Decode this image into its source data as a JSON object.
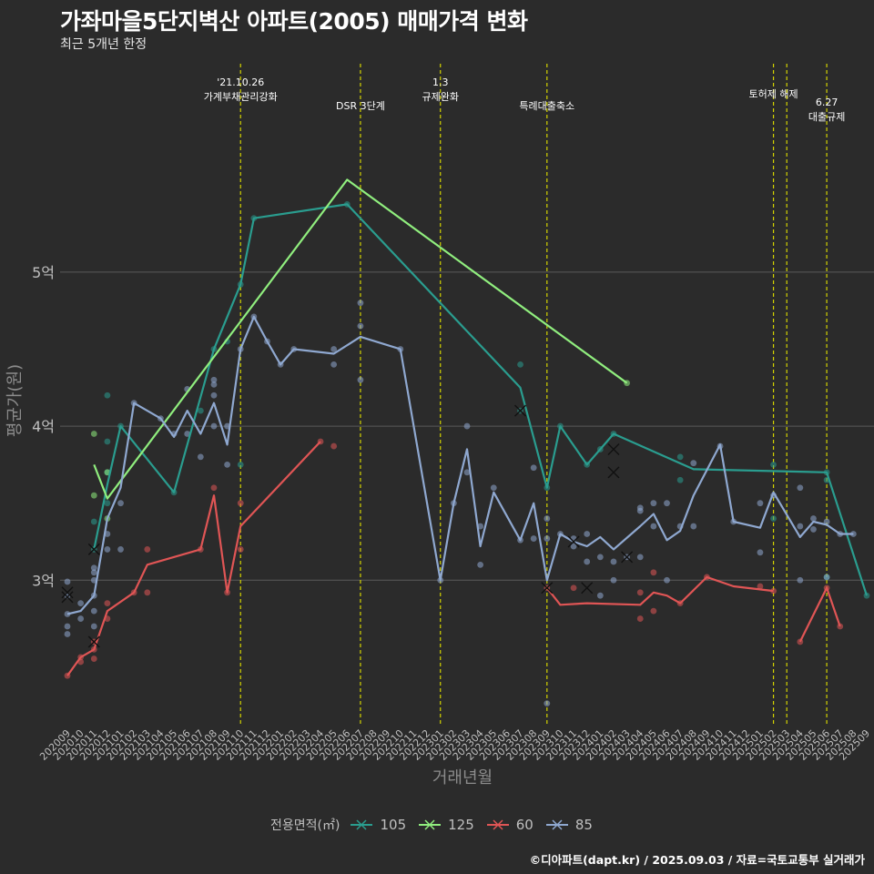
{
  "header": {
    "title": "가좌마을5단지벽산 아파트(2005) 매매가격 변화",
    "subtitle": "최근 5개년 한정"
  },
  "caption": "©디아파트(dapt.kr) / 2025.09.03 / 자료=국토교통부 실거래가",
  "legend": {
    "title": "전용면적(㎡)",
    "items": [
      {
        "label": "105",
        "color": "#2a9d8f"
      },
      {
        "label": "125",
        "color": "#90ee7e"
      },
      {
        "label": "60",
        "color": "#e05555"
      },
      {
        "label": "85",
        "color": "#8fa8d0"
      }
    ]
  },
  "chart_data": {
    "type": "line",
    "xlabel": "거래년월",
    "ylabel": "평균가(원)",
    "ylim": [
      2.05,
      6.4
    ],
    "y_ticks": [
      {
        "value": 3,
        "label": "3억"
      },
      {
        "value": 4,
        "label": "4억"
      },
      {
        "value": 5,
        "label": "5억"
      }
    ],
    "categories": [
      "202009",
      "202010",
      "202011",
      "202012",
      "202101",
      "202102",
      "202103",
      "202104",
      "202105",
      "202106",
      "202107",
      "202108",
      "202109",
      "202110",
      "202111",
      "202112",
      "202201",
      "202202",
      "202203",
      "202204",
      "202205",
      "202206",
      "202207",
      "202208",
      "202209",
      "202210",
      "202211",
      "202212",
      "202301",
      "202302",
      "202303",
      "202304",
      "202305",
      "202306",
      "202307",
      "202308",
      "202309",
      "202310",
      "202311",
      "202312",
      "202401",
      "202402",
      "202403",
      "202404",
      "202405",
      "202406",
      "202407",
      "202408",
      "202409",
      "202410",
      "202411",
      "202412",
      "202501",
      "202502",
      "202503",
      "202504",
      "202505",
      "202506",
      "202507",
      "202508",
      "202509"
    ],
    "events": [
      {
        "x": "202110",
        "lines": [
          "'21.10.26",
          "가계부채관리강화"
        ],
        "row": 0
      },
      {
        "x": "202207",
        "lines": [
          "DSR 3단계"
        ],
        "row": 2
      },
      {
        "x": "202301",
        "lines": [
          "1.3",
          "규제완화"
        ],
        "row": 0
      },
      {
        "x": "202309",
        "lines": [
          "특례대출축소"
        ],
        "row": 2
      },
      {
        "x": "202502",
        "lines": [
          "토허제 해제"
        ],
        "row": 1
      },
      {
        "x": "202503",
        "lines": [],
        "row": 1
      },
      {
        "x": "202506",
        "lines": [
          "6.27",
          "대출규제"
        ],
        "row": 1.7
      }
    ],
    "series": [
      {
        "name": "105",
        "color": "#2a9d8f",
        "points": [
          [
            "202011",
            3.2
          ],
          [
            "202012",
            3.62
          ],
          [
            "202101",
            4.0
          ],
          [
            "202105",
            3.57
          ],
          [
            "202108",
            4.5
          ],
          [
            "202110",
            4.92
          ],
          [
            "202111",
            5.35
          ],
          [
            "202206",
            5.44
          ],
          [
            "202307",
            4.25
          ],
          [
            "202309",
            3.6
          ],
          [
            "202310",
            4.0
          ],
          [
            "202312",
            3.75
          ],
          [
            "202402",
            3.95
          ],
          [
            "202408",
            3.72
          ],
          [
            "202506",
            3.7
          ],
          [
            "202509",
            2.9
          ]
        ],
        "dots": [
          [
            "202011",
            3.2
          ],
          [
            "202011",
            3.38
          ],
          [
            "202012",
            4.2
          ],
          [
            "202012",
            3.9
          ],
          [
            "202012",
            3.5
          ],
          [
            "202012",
            3.7
          ],
          [
            "202101",
            4.0
          ],
          [
            "202105",
            3.57
          ],
          [
            "202107",
            4.1
          ],
          [
            "202108",
            4.5
          ],
          [
            "202109",
            4.55
          ],
          [
            "202110",
            4.92
          ],
          [
            "202110",
            3.75
          ],
          [
            "202111",
            5.35
          ],
          [
            "202206",
            5.44
          ],
          [
            "202307",
            4.1
          ],
          [
            "202307",
            4.4
          ],
          [
            "202309",
            3.6
          ],
          [
            "202310",
            4.0
          ],
          [
            "202312",
            3.75
          ],
          [
            "202401",
            3.85
          ],
          [
            "202402",
            3.95
          ],
          [
            "202407",
            3.8
          ],
          [
            "202407",
            3.65
          ],
          [
            "202502",
            3.75
          ],
          [
            "202502",
            3.4
          ],
          [
            "202506",
            3.7
          ],
          [
            "202506",
            3.65
          ],
          [
            "202506",
            3.02
          ],
          [
            "202509",
            2.9
          ]
        ],
        "crosses": [
          [
            "202011",
            3.2
          ],
          [
            "202307",
            4.1
          ]
        ]
      },
      {
        "name": "125",
        "color": "#90ee7e",
        "points": [
          [
            "202011",
            3.75
          ],
          [
            "202012",
            3.53
          ],
          [
            "202206",
            5.6
          ],
          [
            "202403",
            4.28
          ]
        ],
        "dots": [
          [
            "202011",
            3.95
          ],
          [
            "202011",
            3.55
          ],
          [
            "202012",
            3.4
          ],
          [
            "202012",
            3.7
          ],
          [
            "202403",
            4.28
          ]
        ],
        "crosses": []
      },
      {
        "name": "60",
        "color": "#e05555",
        "points": [
          [
            "202009",
            2.38
          ],
          [
            "202010",
            2.5
          ],
          [
            "202011",
            2.55
          ],
          [
            "202012",
            2.8
          ],
          [
            "202102",
            2.92
          ],
          [
            "202103",
            3.1
          ],
          [
            "202107",
            3.2
          ],
          [
            "202108",
            3.55
          ],
          [
            "202109",
            2.92
          ],
          [
            "202110",
            3.35
          ],
          [
            "202204",
            3.9
          ]
        ],
        "dots": [
          [
            "202009",
            2.38
          ],
          [
            "202010",
            2.5
          ],
          [
            "202010",
            2.47
          ],
          [
            "202011",
            2.6
          ],
          [
            "202011",
            2.55
          ],
          [
            "202011",
            2.49
          ],
          [
            "202012",
            2.75
          ],
          [
            "202012",
            2.85
          ],
          [
            "202102",
            2.92
          ],
          [
            "202103",
            2.92
          ],
          [
            "202103",
            3.2
          ],
          [
            "202107",
            3.2
          ],
          [
            "202108",
            3.6
          ],
          [
            "202109",
            2.92
          ],
          [
            "202110",
            3.5
          ],
          [
            "202110",
            3.2
          ],
          [
            "202205",
            3.87
          ],
          [
            "202204",
            3.9
          ],
          [
            "202309",
            2.95
          ],
          [
            "202311",
            2.95
          ],
          [
            "202404",
            2.75
          ],
          [
            "202404",
            2.92
          ],
          [
            "202405",
            2.8
          ],
          [
            "202405",
            3.05
          ],
          [
            "202407",
            2.85
          ],
          [
            "202409",
            3.02
          ],
          [
            "202501",
            2.96
          ],
          [
            "202502",
            2.93
          ],
          [
            "202504",
            2.6
          ],
          [
            "202506",
            2.95
          ],
          [
            "202507",
            2.7
          ]
        ],
        "crosses": [
          [
            "202011",
            2.6
          ],
          [
            "202309",
            2.95
          ],
          [
            "202312",
            2.95
          ]
        ],
        "line2": [
          [
            "202309",
            2.95
          ],
          [
            "202310",
            2.84
          ],
          [
            "202312",
            2.85
          ],
          [
            "202404",
            2.84
          ],
          [
            "202405",
            2.92
          ],
          [
            "202406",
            2.9
          ],
          [
            "202407",
            2.85
          ],
          [
            "202409",
            3.02
          ],
          [
            "202411",
            2.96
          ],
          [
            "202502",
            2.93
          ]
        ],
        "line3": [
          [
            "202504",
            2.6
          ],
          [
            "202506",
            2.95
          ],
          [
            "202507",
            2.7
          ]
        ]
      },
      {
        "name": "85",
        "color": "#8fa8d0",
        "points": [
          [
            "202009",
            2.78
          ],
          [
            "202010",
            2.8
          ],
          [
            "202011",
            2.9
          ],
          [
            "202012",
            3.4
          ],
          [
            "202101",
            3.6
          ],
          [
            "202102",
            4.15
          ],
          [
            "202104",
            4.05
          ],
          [
            "202105",
            3.93
          ],
          [
            "202106",
            4.1
          ],
          [
            "202107",
            3.95
          ],
          [
            "202108",
            4.15
          ],
          [
            "202109",
            3.88
          ],
          [
            "202110",
            4.5
          ],
          [
            "202111",
            4.71
          ],
          [
            "202112",
            4.55
          ],
          [
            "202201",
            4.4
          ],
          [
            "202202",
            4.5
          ],
          [
            "202205",
            4.47
          ],
          [
            "202207",
            4.58
          ],
          [
            "202210",
            4.5
          ],
          [
            "202301",
            3.0
          ],
          [
            "202302",
            3.5
          ],
          [
            "202303",
            3.85
          ],
          [
            "202304",
            3.22
          ],
          [
            "202305",
            3.57
          ],
          [
            "202307",
            3.26
          ],
          [
            "202308",
            3.5
          ],
          [
            "202309",
            3.0
          ],
          [
            "202310",
            3.3
          ],
          [
            "202311",
            3.25
          ],
          [
            "202312",
            3.22
          ],
          [
            "202401",
            3.28
          ],
          [
            "202402",
            3.2
          ],
          [
            "202404",
            3.35
          ],
          [
            "202405",
            3.43
          ],
          [
            "202406",
            3.26
          ],
          [
            "202407",
            3.32
          ],
          [
            "202408",
            3.55
          ],
          [
            "202410",
            3.88
          ],
          [
            "202411",
            3.38
          ],
          [
            "202501",
            3.34
          ],
          [
            "202502",
            3.57
          ],
          [
            "202504",
            3.28
          ],
          [
            "202505",
            3.38
          ],
          [
            "202506",
            3.36
          ],
          [
            "202507",
            3.3
          ],
          [
            "202508",
            3.3
          ]
        ],
        "dots": [
          [
            "202009",
            2.99
          ],
          [
            "202009",
            2.9
          ],
          [
            "202009",
            2.78
          ],
          [
            "202009",
            2.7
          ],
          [
            "202009",
            2.65
          ],
          [
            "202010",
            2.85
          ],
          [
            "202010",
            2.75
          ],
          [
            "202011",
            3.08
          ],
          [
            "202011",
            3.05
          ],
          [
            "202011",
            3.0
          ],
          [
            "202011",
            2.9
          ],
          [
            "202011",
            2.8
          ],
          [
            "202011",
            2.7
          ],
          [
            "202012",
            3.3
          ],
          [
            "202012",
            3.2
          ],
          [
            "202101",
            3.5
          ],
          [
            "202101",
            3.2
          ],
          [
            "202102",
            4.15
          ],
          [
            "202104",
            4.05
          ],
          [
            "202105",
            3.95
          ],
          [
            "202106",
            3.95
          ],
          [
            "202106",
            4.24
          ],
          [
            "202107",
            3.8
          ],
          [
            "202108",
            4.3
          ],
          [
            "202108",
            4.27
          ],
          [
            "202108",
            4.2
          ],
          [
            "202108",
            4.0
          ],
          [
            "202109",
            4.0
          ],
          [
            "202109",
            3.75
          ],
          [
            "202110",
            4.5
          ],
          [
            "202111",
            4.71
          ],
          [
            "202112",
            4.55
          ],
          [
            "202201",
            4.4
          ],
          [
            "202202",
            4.5
          ],
          [
            "202205",
            4.5
          ],
          [
            "202205",
            4.4
          ],
          [
            "202207",
            4.8
          ],
          [
            "202207",
            4.65
          ],
          [
            "202207",
            4.3
          ],
          [
            "202210",
            4.5
          ],
          [
            "202301",
            3.0
          ],
          [
            "202302",
            3.5
          ],
          [
            "202303",
            4.0
          ],
          [
            "202303",
            3.7
          ],
          [
            "202304",
            3.35
          ],
          [
            "202304",
            3.1
          ],
          [
            "202305",
            3.6
          ],
          [
            "202307",
            3.26
          ],
          [
            "202308",
            3.73
          ],
          [
            "202308",
            3.27
          ],
          [
            "202309",
            3.27
          ],
          [
            "202309",
            3.4
          ],
          [
            "202309",
            2.2
          ],
          [
            "202310",
            3.3
          ],
          [
            "202311",
            3.27
          ],
          [
            "202311",
            3.22
          ],
          [
            "202312",
            3.3
          ],
          [
            "202312",
            3.12
          ],
          [
            "202401",
            3.15
          ],
          [
            "202401",
            2.9
          ],
          [
            "202402",
            3.12
          ],
          [
            "202402",
            3.0
          ],
          [
            "202403",
            3.15
          ],
          [
            "202404",
            3.45
          ],
          [
            "202404",
            3.47
          ],
          [
            "202404",
            3.15
          ],
          [
            "202405",
            3.5
          ],
          [
            "202405",
            3.35
          ],
          [
            "202406",
            3.5
          ],
          [
            "202406",
            3.0
          ],
          [
            "202407",
            3.35
          ],
          [
            "202408",
            3.35
          ],
          [
            "202408",
            3.76
          ],
          [
            "202410",
            3.87
          ],
          [
            "202411",
            3.38
          ],
          [
            "202501",
            3.5
          ],
          [
            "202501",
            3.18
          ],
          [
            "202502",
            3.55
          ],
          [
            "202504",
            3.6
          ],
          [
            "202504",
            3.35
          ],
          [
            "202504",
            3.0
          ],
          [
            "202505",
            3.4
          ],
          [
            "202505",
            3.33
          ],
          [
            "202506",
            3.02
          ],
          [
            "202506",
            3.38
          ],
          [
            "202507",
            3.3
          ],
          [
            "202508",
            3.3
          ]
        ],
        "crosses": [
          [
            "202009",
            2.92
          ],
          [
            "202009",
            2.89
          ],
          [
            "202402",
            3.85
          ],
          [
            "202402",
            3.7
          ],
          [
            "202403",
            3.15
          ],
          [
            "202311",
            3.25
          ]
        ]
      }
    ]
  }
}
